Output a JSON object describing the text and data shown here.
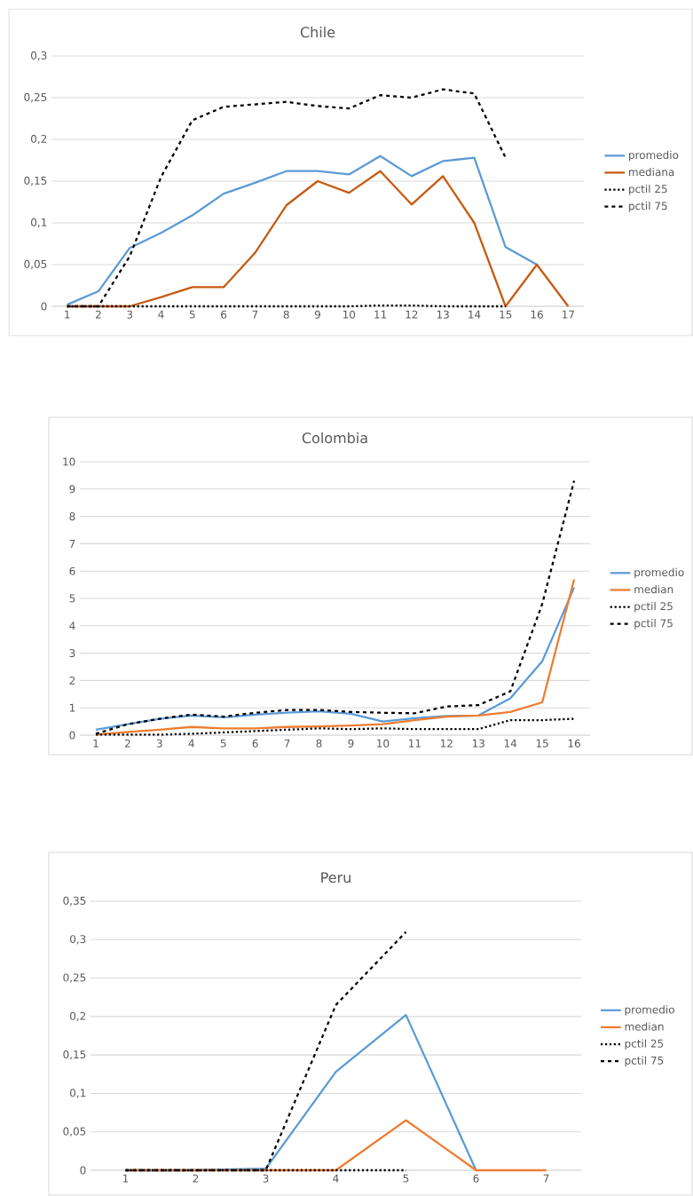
{
  "chart_data": [
    {
      "type": "line",
      "title": "Chile",
      "categories": [
        "1",
        "2",
        "3",
        "4",
        "5",
        "6",
        "7",
        "8",
        "9",
        "10",
        "11",
        "12",
        "13",
        "14",
        "15",
        "16",
        "17"
      ],
      "ylim": [
        0,
        0.3
      ],
      "yticks": [
        0,
        {
          "value": 0.05,
          "label": "0,05"
        },
        {
          "value": 0.1,
          "label": "0,1"
        },
        {
          "value": 0.15,
          "label": "0,15"
        },
        {
          "value": 0.2,
          "label": "0,2"
        },
        {
          "value": 0.25,
          "label": "0,25"
        },
        {
          "value": 0.3,
          "label": "0,3"
        }
      ],
      "grid": "y",
      "legend": "right",
      "series": [
        {
          "name": "promedio",
          "color": "#5b9bd5",
          "line_style": "solid",
          "values": [
            0.002,
            0.018,
            0.07,
            0.088,
            0.109,
            0.135,
            0.148,
            0.162,
            0.162,
            0.158,
            0.18,
            0.156,
            0.174,
            0.178,
            0.071,
            0.05,
            null
          ]
        },
        {
          "name": "mediana",
          "color": "#c55a11",
          "line_style": "solid",
          "values": [
            0,
            0,
            0,
            0.011,
            0.023,
            0.023,
            0.064,
            0.121,
            0.15,
            0.136,
            0.162,
            0.122,
            0.156,
            0.1,
            0,
            0.05,
            0
          ]
        },
        {
          "name": "pctil 25",
          "color": "#000000",
          "line_style": "dotted",
          "values": [
            0,
            0,
            0,
            0,
            0,
            0,
            0,
            0,
            0,
            0,
            0.001,
            0.001,
            0,
            0,
            0,
            null,
            null
          ]
        },
        {
          "name": "pctil 75",
          "color": "#000000",
          "line_style": "dashed",
          "values": [
            0,
            0,
            0.06,
            0.155,
            0.223,
            0.239,
            0.242,
            0.245,
            0.24,
            0.237,
            0.253,
            0.25,
            0.26,
            0.255,
            0.178,
            null,
            null
          ]
        }
      ]
    },
    {
      "type": "line",
      "title": "Colombia",
      "categories": [
        "1",
        "2",
        "3",
        "4",
        "5",
        "6",
        "7",
        "8",
        "9",
        "10",
        "11",
        "12",
        "13",
        "14",
        "15",
        "16"
      ],
      "ylim": [
        0,
        10
      ],
      "yticks": [
        0,
        1,
        2,
        3,
        4,
        5,
        6,
        7,
        8,
        9,
        10
      ],
      "grid": "y",
      "legend": "right",
      "series": [
        {
          "name": "promedio",
          "color": "#5b9bd5",
          "line_style": "solid",
          "values": [
            0.2,
            0.4,
            0.6,
            0.72,
            0.65,
            0.75,
            0.82,
            0.87,
            0.78,
            0.5,
            0.62,
            0.7,
            0.72,
            1.35,
            2.7,
            5.4
          ]
        },
        {
          "name": "median",
          "color": "#ed7d31",
          "line_style": "solid",
          "values": [
            0.02,
            0.12,
            0.2,
            0.3,
            0.25,
            0.25,
            0.3,
            0.32,
            0.35,
            0.4,
            0.55,
            0.68,
            0.72,
            0.85,
            1.2,
            5.7
          ]
        },
        {
          "name": "pctil 25",
          "color": "#000000",
          "line_style": "dotted",
          "values": [
            0.02,
            0.02,
            0.02,
            0.05,
            0.1,
            0.15,
            0.2,
            0.25,
            0.22,
            0.25,
            0.22,
            0.22,
            0.22,
            0.55,
            0.55,
            0.6
          ]
        },
        {
          "name": "pctil 75",
          "color": "#000000",
          "line_style": "dashed",
          "values": [
            0.05,
            0.4,
            0.6,
            0.75,
            0.68,
            0.82,
            0.92,
            0.92,
            0.85,
            0.82,
            0.8,
            1.05,
            1.1,
            1.6,
            4.8,
            9.3
          ]
        }
      ]
    },
    {
      "type": "line",
      "title": "Peru",
      "categories": [
        "1",
        "2",
        "3",
        "4",
        "5",
        "6",
        "7"
      ],
      "ylim": [
        0,
        0.35
      ],
      "yticks": [
        0,
        {
          "value": 0.05,
          "label": "0,05"
        },
        {
          "value": 0.1,
          "label": "0,1"
        },
        {
          "value": 0.15,
          "label": "0,15"
        },
        {
          "value": 0.2,
          "label": "0,2"
        },
        {
          "value": 0.25,
          "label": "0,25"
        },
        {
          "value": 0.3,
          "label": "0,3"
        },
        {
          "value": 0.35,
          "label": "0,35"
        }
      ],
      "grid": "y",
      "legend": "right",
      "series": [
        {
          "name": "promedio",
          "color": "#5b9bd5",
          "line_style": "solid",
          "values": [
            0,
            0,
            0.002,
            0.128,
            0.202,
            0,
            null
          ]
        },
        {
          "name": "median",
          "color": "#ed7d31",
          "line_style": "solid",
          "values": [
            0,
            0,
            0,
            0,
            0.065,
            0,
            0
          ]
        },
        {
          "name": "pctil 25",
          "color": "#000000",
          "line_style": "dotted",
          "values": [
            0,
            0,
            0,
            0,
            0,
            null,
            null
          ]
        },
        {
          "name": "pctil 75",
          "color": "#000000",
          "line_style": "dashed",
          "values": [
            0,
            0,
            0,
            0.215,
            0.31,
            null,
            null
          ]
        }
      ]
    }
  ]
}
